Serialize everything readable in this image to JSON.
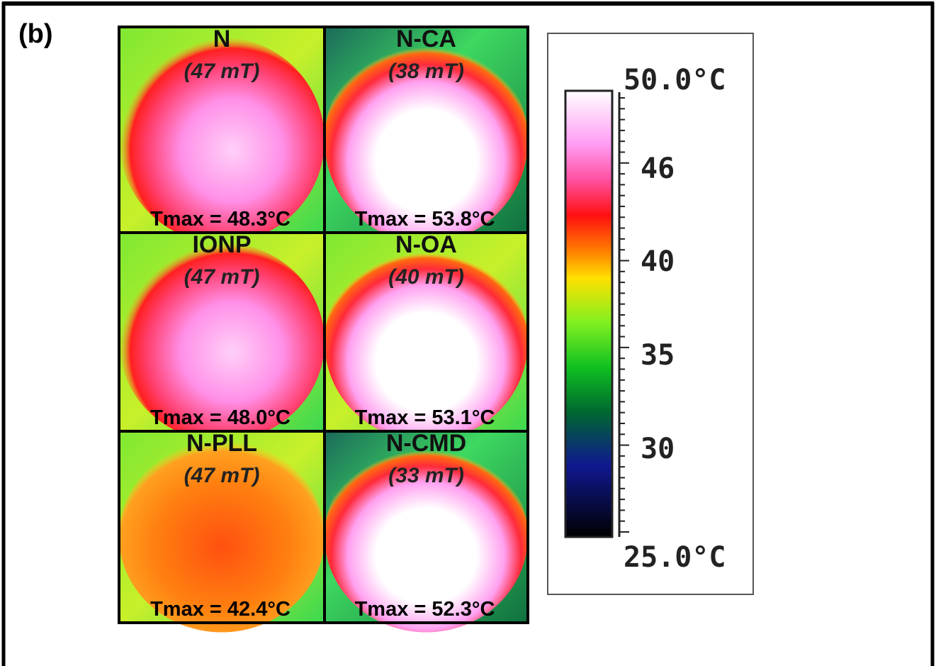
{
  "panel_label": "(b)",
  "tiles": [
    {
      "name": "N",
      "field": "(47 mT)",
      "tmax": "Tmax = 48.3°C"
    },
    {
      "name": "N-CA",
      "field": "(38 mT)",
      "tmax": "Tmax = 53.8°C"
    },
    {
      "name": "IONP",
      "field": "(47 mT)",
      "tmax": "Tmax = 48.0°C"
    },
    {
      "name": "N-OA",
      "field": "(40 mT)",
      "tmax": "Tmax = 53.1°C"
    },
    {
      "name": "N-PLL",
      "field": "(47 mT)",
      "tmax": "Tmax = 42.4°C"
    },
    {
      "name": "N-CMD",
      "field": "(33 mT)",
      "tmax": "Tmax = 52.3°C"
    }
  ],
  "colorbar": {
    "labels": [
      "50.0°C",
      "46",
      "40",
      "35",
      "30",
      "25.0°C"
    ]
  }
}
